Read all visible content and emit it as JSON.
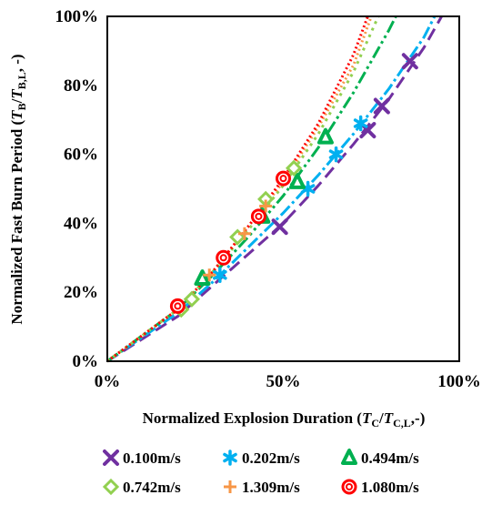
{
  "chart_data": {
    "type": "line",
    "title": "",
    "xlabel": "Normalized Explosion Duration (TC/TC,L,-)",
    "ylabel": "Normalized Fast Burn Period (TB/TB,L, -)",
    "xlim": [
      0,
      100
    ],
    "ylim": [
      0,
      100
    ],
    "x_ticks": [
      "0%",
      "50%",
      "100%"
    ],
    "y_ticks": [
      "0%",
      "20%",
      "40%",
      "60%",
      "80%",
      "100%"
    ],
    "grid": false,
    "legend_position": "bottom",
    "series": [
      {
        "name": "0.100m/s",
        "color": "#7030a0",
        "marker": "x",
        "dash": "14,7",
        "curve": [
          [
            0,
            0
          ],
          [
            20,
            13
          ],
          [
            30,
            22
          ],
          [
            40,
            31
          ],
          [
            50,
            40
          ],
          [
            60,
            51
          ],
          [
            70,
            63
          ],
          [
            80,
            76
          ],
          [
            90,
            91
          ],
          [
            95,
            100
          ]
        ],
        "points": [
          [
            49,
            39
          ],
          [
            74,
            67
          ],
          [
            78,
            74
          ],
          [
            86,
            87
          ]
        ]
      },
      {
        "name": "0.202m/s",
        "color": "#00b0f0",
        "marker": "asterisk",
        "dash": "14,4,3,4",
        "curve": [
          [
            0,
            0
          ],
          [
            20,
            14
          ],
          [
            30,
            23
          ],
          [
            40,
            33
          ],
          [
            50,
            43
          ],
          [
            60,
            54
          ],
          [
            70,
            66
          ],
          [
            80,
            79
          ],
          [
            90,
            94
          ],
          [
            93,
            100
          ]
        ],
        "points": [
          [
            32,
            25
          ],
          [
            57,
            50
          ],
          [
            65,
            60
          ],
          [
            72,
            69
          ]
        ]
      },
      {
        "name": "0.494m/s",
        "color": "#00b050",
        "marker": "triangle",
        "dash": "14,4,3,4,3,4",
        "curve": [
          [
            0,
            0
          ],
          [
            20,
            15
          ],
          [
            30,
            25
          ],
          [
            40,
            36
          ],
          [
            50,
            48
          ],
          [
            60,
            62
          ],
          [
            70,
            78
          ],
          [
            80,
            96
          ],
          [
            82,
            100
          ]
        ],
        "points": [
          [
            27,
            24
          ],
          [
            44,
            42
          ],
          [
            54,
            52
          ],
          [
            62,
            65
          ]
        ]
      },
      {
        "name": "0.742m/s",
        "color": "#92d050",
        "marker": "diamond",
        "dash": "3,5",
        "curve": [
          [
            0,
            0
          ],
          [
            20,
            15
          ],
          [
            30,
            26
          ],
          [
            40,
            38
          ],
          [
            50,
            51
          ],
          [
            60,
            66
          ],
          [
            70,
            84
          ],
          [
            77,
            100
          ]
        ],
        "points": [
          [
            21,
            15
          ],
          [
            24,
            18
          ],
          [
            37,
            36
          ],
          [
            45,
            47
          ],
          [
            53,
            56
          ]
        ]
      },
      {
        "name": "1.309m/s",
        "color": "#f79646",
        "marker": "plus",
        "dash": "2,3",
        "curve": [
          [
            0,
            0
          ],
          [
            20,
            15
          ],
          [
            30,
            26
          ],
          [
            40,
            39
          ],
          [
            50,
            52
          ],
          [
            60,
            68
          ],
          [
            70,
            86
          ],
          [
            75,
            100
          ]
        ],
        "points": [
          [
            29,
            25
          ],
          [
            39,
            37
          ],
          [
            45,
            45
          ]
        ]
      },
      {
        "name": "1.080m/s",
        "color": "#ff0000",
        "marker": "circle",
        "dash": "2,3",
        "curve": [
          [
            0,
            0
          ],
          [
            20,
            15
          ],
          [
            30,
            26
          ],
          [
            40,
            39
          ],
          [
            50,
            53
          ],
          [
            60,
            69
          ],
          [
            70,
            89
          ],
          [
            74,
            100
          ]
        ],
        "points": [
          [
            20,
            16
          ],
          [
            33,
            30
          ],
          [
            43,
            42
          ],
          [
            50,
            53
          ]
        ]
      }
    ]
  }
}
